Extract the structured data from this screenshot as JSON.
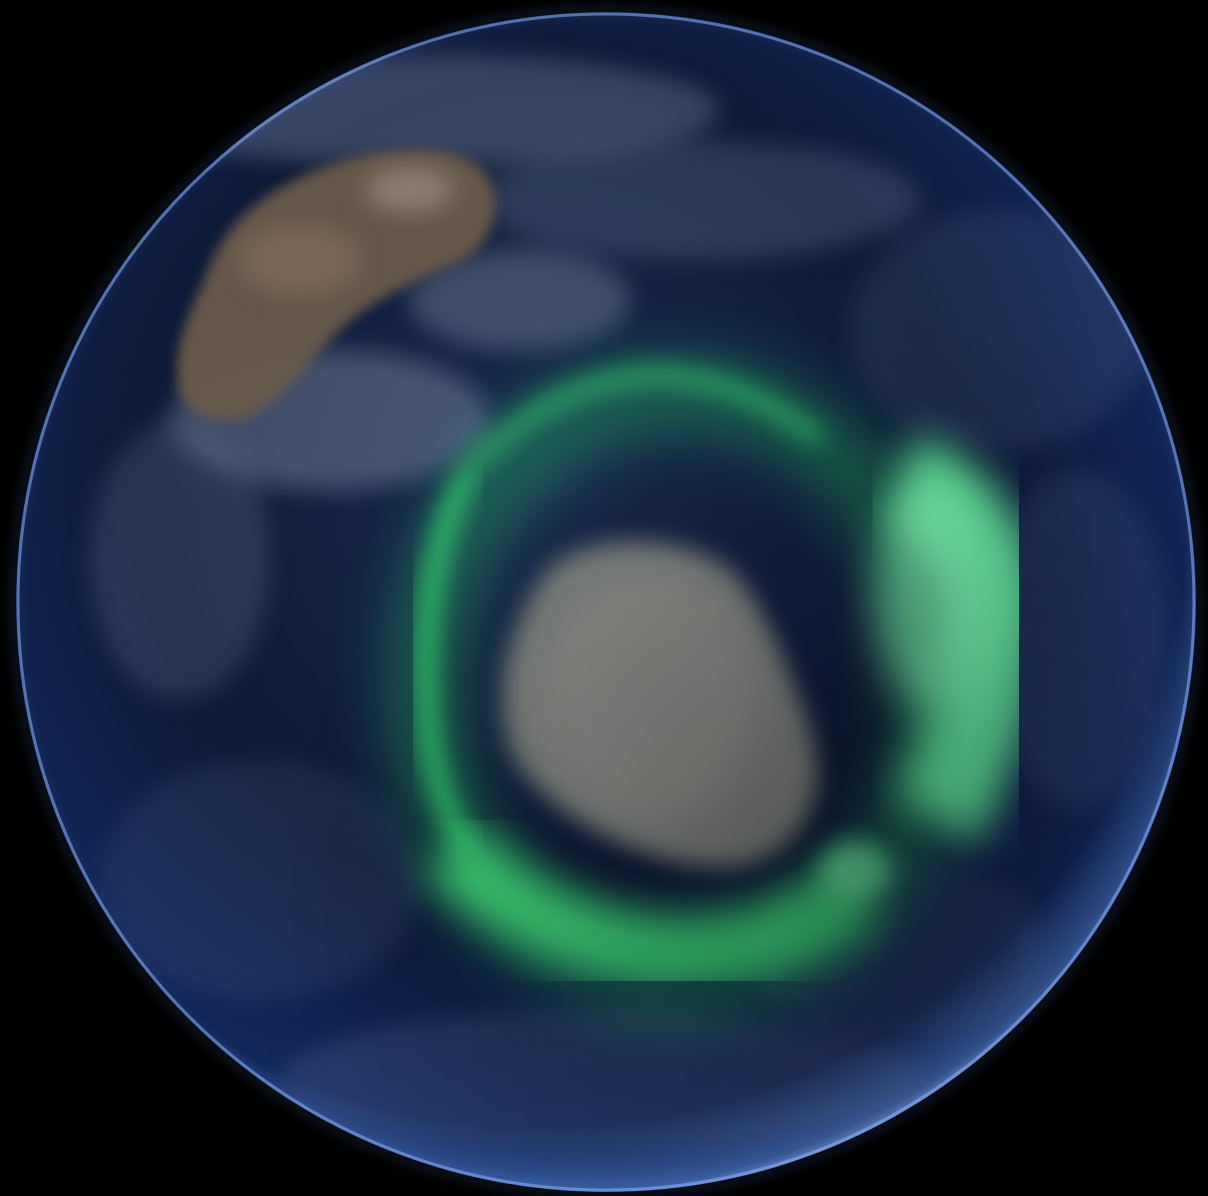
{
  "image": {
    "subject": "earth-globe-with-aurora",
    "colors": {
      "space": "#000000",
      "ocean_deep": "#0a1430",
      "ocean_mid": "#1d3560",
      "limb_glow": "#8fb4ff",
      "landmass": "#6b5a48",
      "ice_sheet": "#8a8c86",
      "cloud": "#c8d2e6",
      "aurora": "#3dff7a",
      "aurora_bright": "#7dffb0"
    }
  }
}
